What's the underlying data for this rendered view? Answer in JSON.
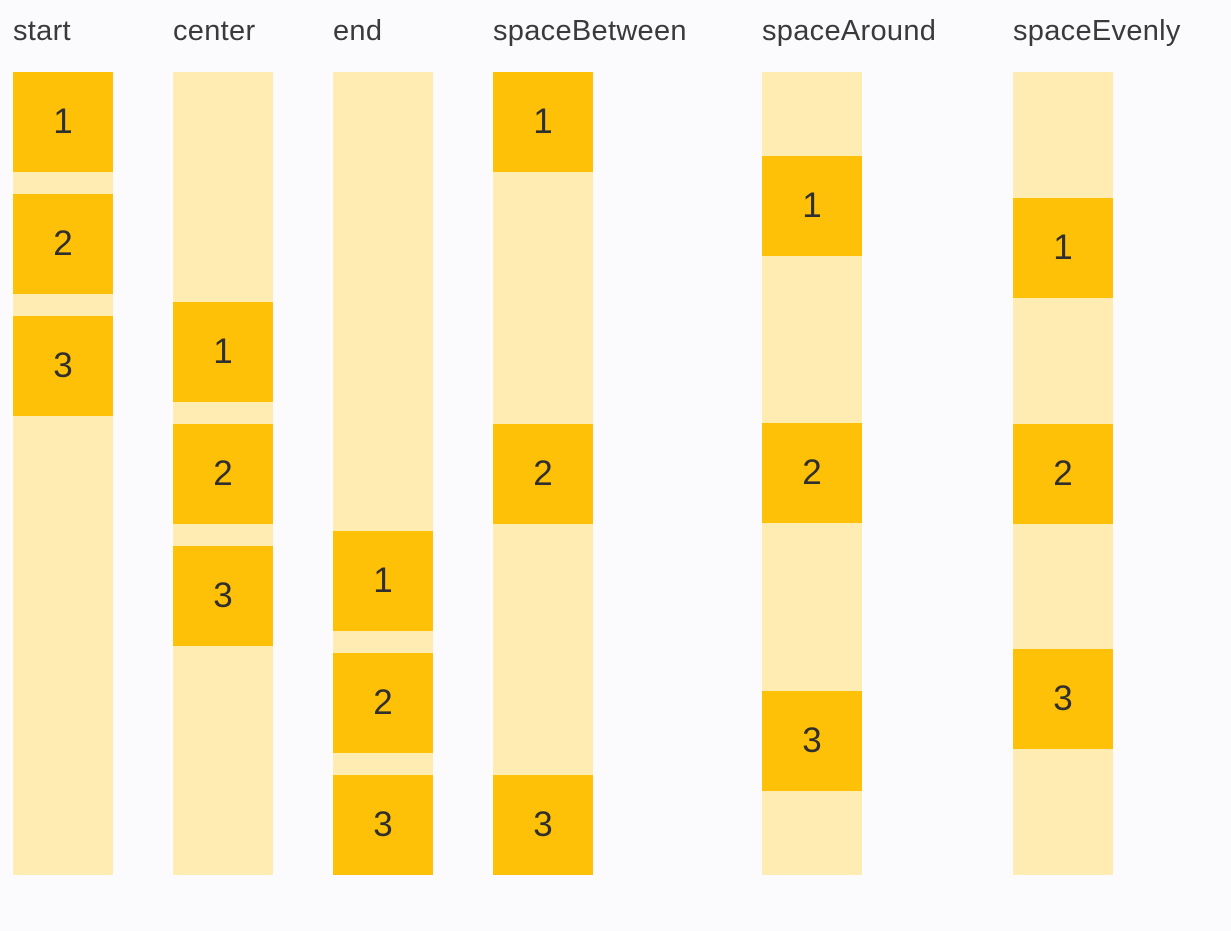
{
  "colors": {
    "item": "#FFC107",
    "track": "#FFECB3",
    "label_text": "#3A3A3A",
    "digit_text": "#2F2F2F",
    "page_background": "#FBFBFE"
  },
  "columns": [
    {
      "label": "start",
      "items": [
        "1",
        "2",
        "3"
      ]
    },
    {
      "label": "center",
      "items": [
        "1",
        "2",
        "3"
      ]
    },
    {
      "label": "end",
      "items": [
        "1",
        "2",
        "3"
      ]
    },
    {
      "label": "spaceBetween",
      "items": [
        "1",
        "2",
        "3"
      ]
    },
    {
      "label": "spaceAround",
      "items": [
        "1",
        "2",
        "3"
      ]
    },
    {
      "label": "spaceEvenly",
      "items": [
        "1",
        "2",
        "3"
      ]
    }
  ]
}
